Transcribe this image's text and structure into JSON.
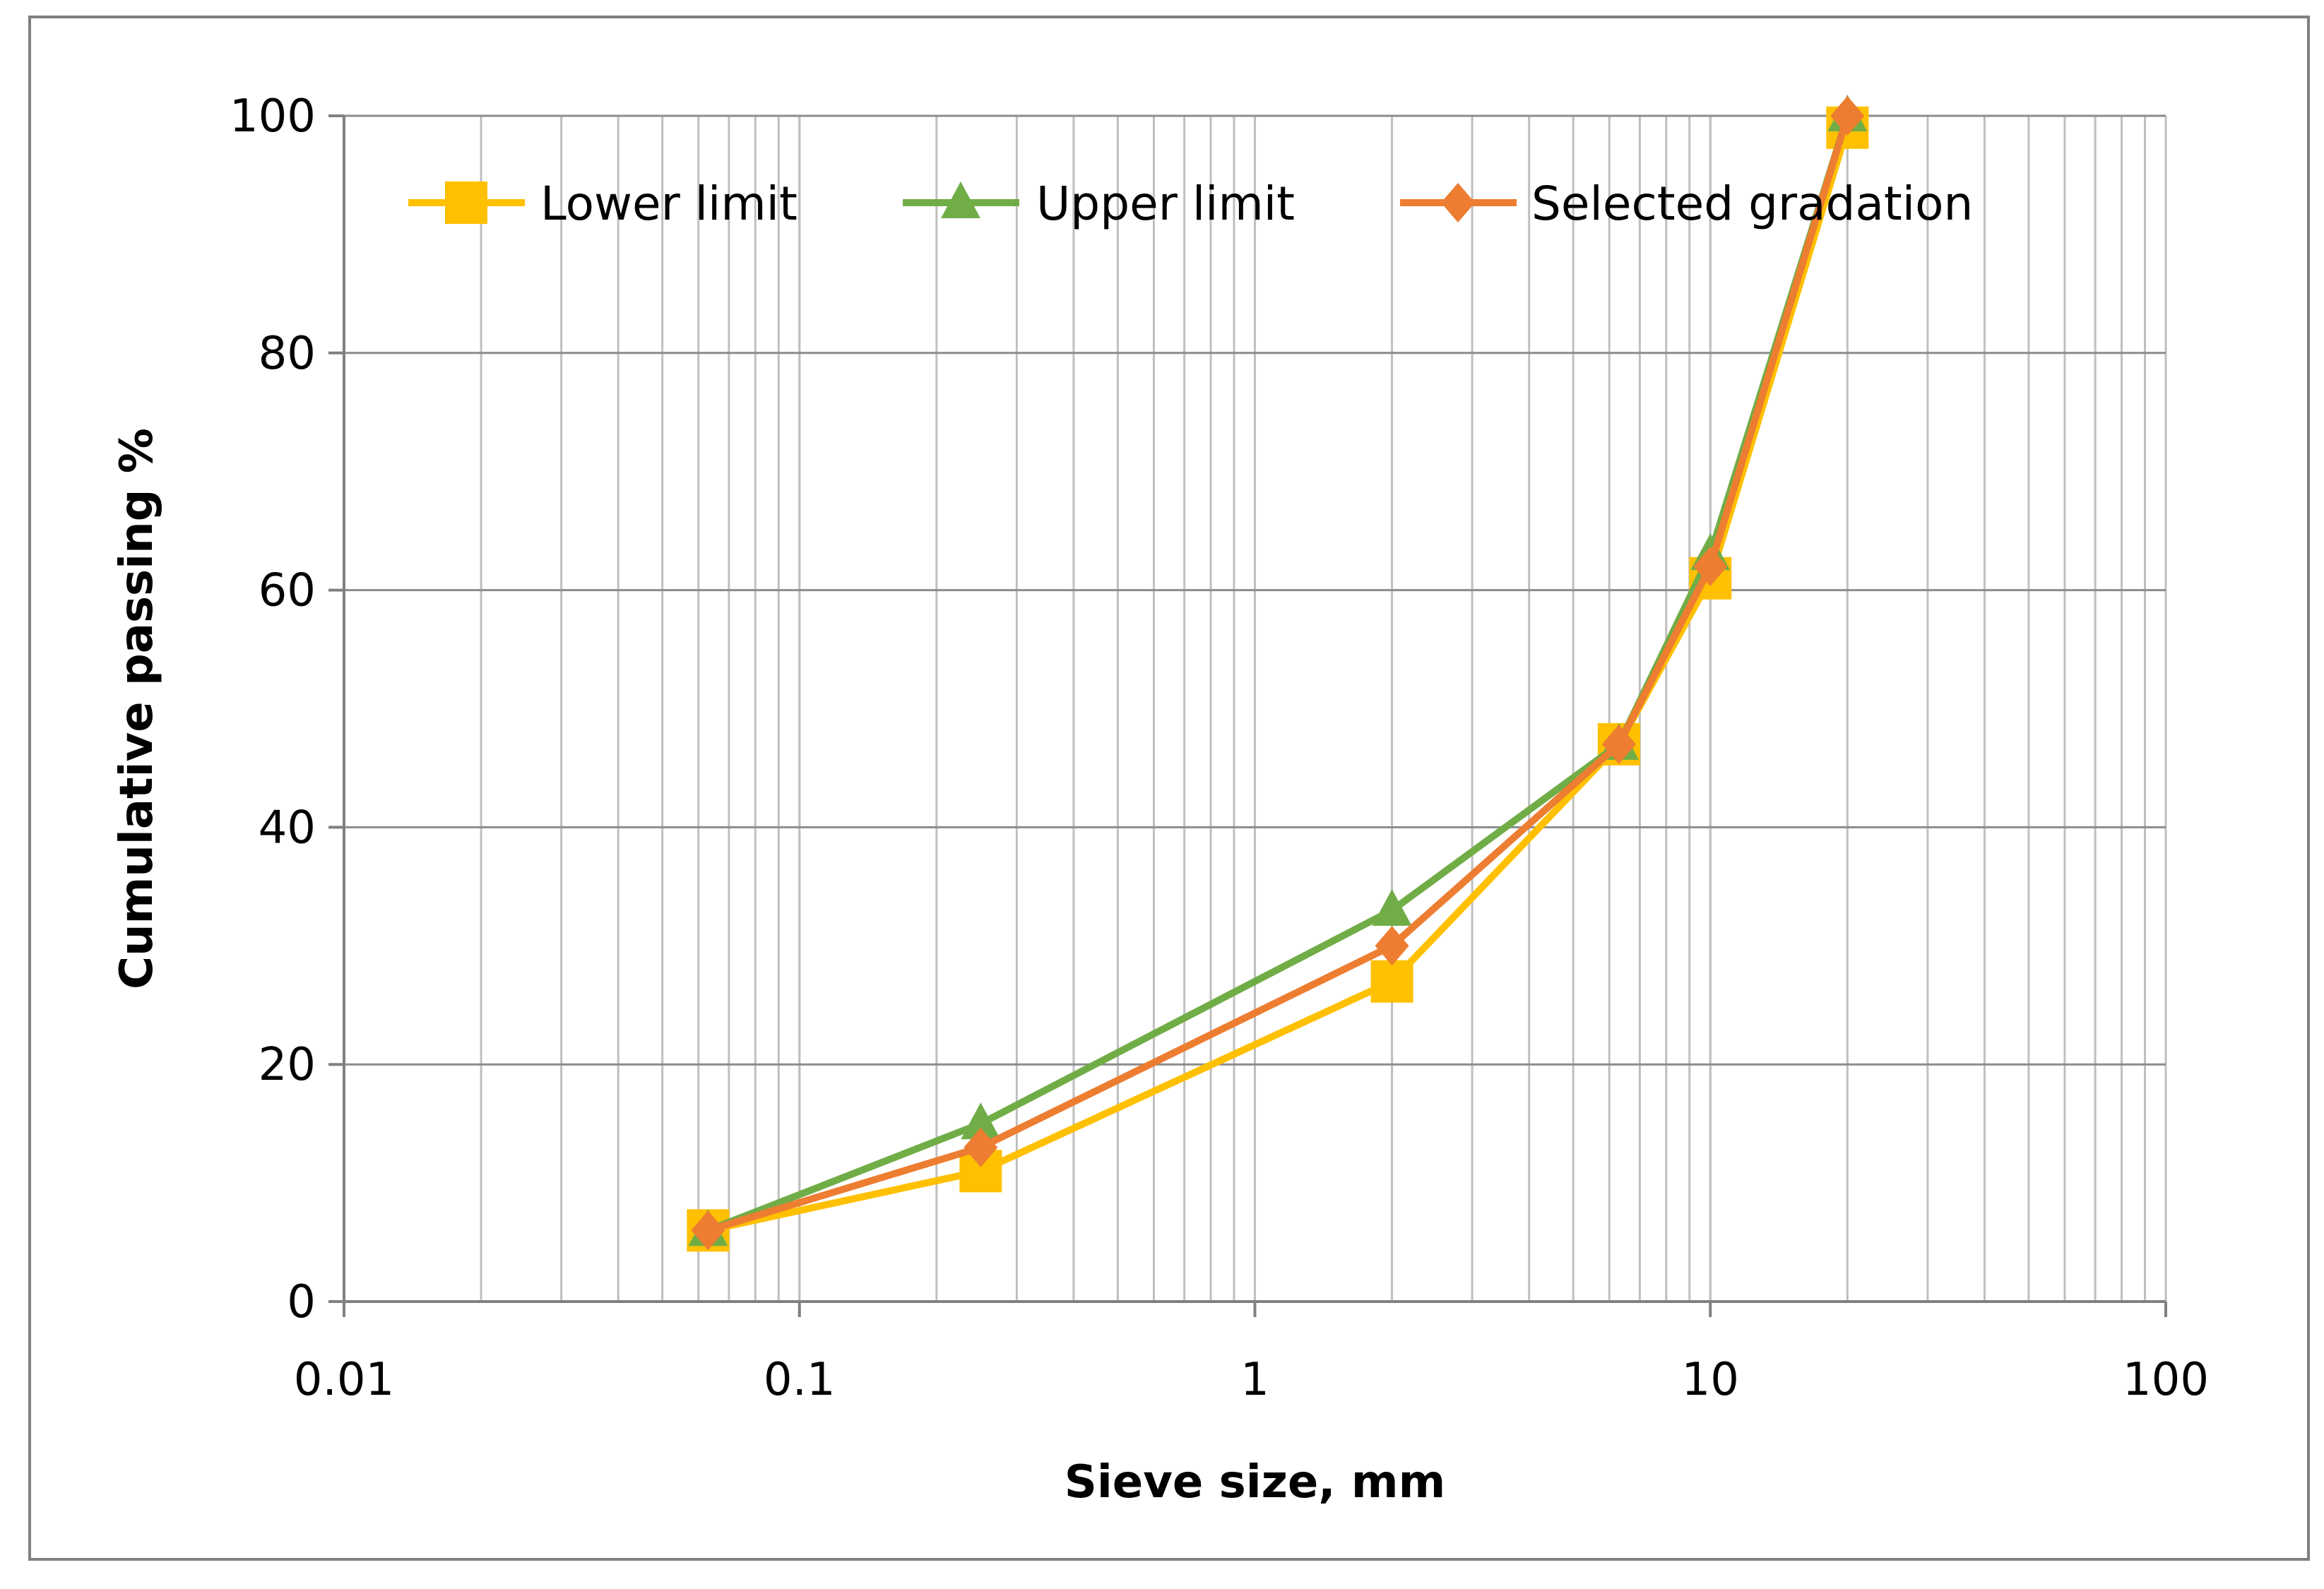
{
  "chart_data": {
    "type": "line",
    "title": "",
    "xlabel": "Sieve size, mm",
    "ylabel": "Cumulative passing %",
    "xscale": "log",
    "xlim": [
      0.01,
      100
    ],
    "ylim": [
      0,
      100
    ],
    "xticks": [
      "0.01",
      "0.1",
      "1",
      "10",
      "100"
    ],
    "yticks": [
      "0",
      "20",
      "40",
      "60",
      "80",
      "100"
    ],
    "grid": true,
    "legend_position": "top",
    "series": [
      {
        "name": "Lower limit",
        "color": "#FFC000",
        "marker": "square",
        "x": [
          0.063,
          0.25,
          2,
          6.3,
          10,
          20
        ],
        "y": [
          6,
          11,
          27,
          47,
          61,
          99
        ]
      },
      {
        "name": "Upper limit",
        "color": "#70AD47",
        "marker": "triangle",
        "x": [
          0.063,
          0.25,
          2,
          6.3,
          10,
          20
        ],
        "y": [
          6,
          15,
          33,
          47,
          63,
          100
        ]
      },
      {
        "name": "Selected gradation",
        "color": "#ED7D31",
        "marker": "diamond",
        "x": [
          0.063,
          0.25,
          2,
          6.3,
          10,
          20
        ],
        "y": [
          6,
          13,
          30,
          47,
          62,
          100
        ]
      }
    ]
  }
}
